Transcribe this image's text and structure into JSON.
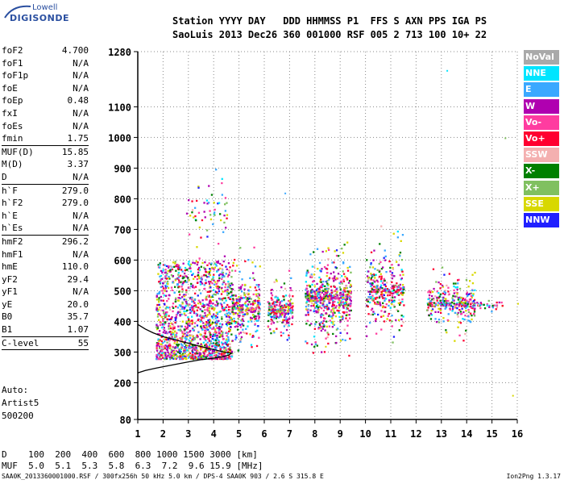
{
  "logo": {
    "line1": "Lowell",
    "line2": "DIGISONDE"
  },
  "header": {
    "line1": "Station YYYY DAY   DDD HHMMSS P1  FFS S AXN PPS IGA PS",
    "line2": "SaoLuis 2013 Dec26 360 001000 RSF 005 2 713 100 10+ 22"
  },
  "params": [
    {
      "k": "foF2",
      "v": "4.700"
    },
    {
      "k": "foF1",
      "v": "N/A"
    },
    {
      "k": "foF1p",
      "v": "N/A"
    },
    {
      "k": "foE",
      "v": "N/A"
    },
    {
      "k": "foEp",
      "v": "0.48"
    },
    {
      "k": "fxI",
      "v": "N/A"
    },
    {
      "k": "foEs",
      "v": "N/A"
    },
    {
      "k": "fmin",
      "v": "1.75"
    },
    {
      "sep": true
    },
    {
      "k": "MUF(D)",
      "v": "15.85"
    },
    {
      "k": "M(D)",
      "v": "3.37"
    },
    {
      "k": "D",
      "v": "N/A"
    },
    {
      "sep": true
    },
    {
      "k": "h`F",
      "v": "279.0"
    },
    {
      "k": "h`F2",
      "v": "279.0"
    },
    {
      "k": "h`E",
      "v": "N/A"
    },
    {
      "k": "h`Es",
      "v": "N/A"
    },
    {
      "sep": true
    },
    {
      "k": "hmF2",
      "v": "296.2"
    },
    {
      "k": "hmF1",
      "v": "N/A"
    },
    {
      "k": "hmE",
      "v": "110.0"
    },
    {
      "k": "yF2",
      "v": "29.4"
    },
    {
      "k": "yF1",
      "v": "N/A"
    },
    {
      "k": "yE",
      "v": "20.0"
    },
    {
      "k": "B0",
      "v": "35.7"
    },
    {
      "k": "B1",
      "v": "1.07"
    },
    {
      "sep": true
    },
    {
      "k": "C-level",
      "v": "55"
    },
    {
      "sep": true
    }
  ],
  "autoinfo": [
    "Auto:",
    "Artist5",
    "500200"
  ],
  "legend": [
    {
      "label": "NoVal",
      "color": "#a9a9a9"
    },
    {
      "label": "NNE",
      "color": "#00e5ff"
    },
    {
      "label": "E",
      "color": "#3aa8ff"
    },
    {
      "label": "W",
      "color": "#b000b0"
    },
    {
      "label": "Vo-",
      "color": "#ff3ca0"
    },
    {
      "label": "Vo+",
      "color": "#ff0030"
    },
    {
      "label": "SSW",
      "color": "#f4b0b0"
    },
    {
      "label": "X-",
      "color": "#008000"
    },
    {
      "label": "X+",
      "color": "#80c060"
    },
    {
      "label": "SSE",
      "color": "#d8d800"
    },
    {
      "label": "NNW",
      "color": "#2020ff"
    }
  ],
  "muf_table": {
    "line1": "D    100  200  400  600  800 1000 1500 3000 [km]",
    "line2": "MUF  5.0  5.1  5.3  5.8  6.3  7.2  9.6 15.9 [MHz]"
  },
  "footer": "SAA0K_2013360001000.RSF / 300fx256h 50 kHz 5.0 km / DPS-4 SAA0K 903 / 2.6 S 315.8 E",
  "footer_right": "Ion2Png 1.3.17",
  "chart_data": {
    "type": "scatter",
    "title": "",
    "xlabel": "",
    "ylabel": "",
    "x_ticks": [
      "1",
      "2",
      "3",
      "4",
      "5",
      "6",
      "7",
      "8",
      "9",
      "10",
      "11",
      "12",
      "13",
      "14",
      "15",
      "16"
    ],
    "y_ticks": [
      "80",
      "200",
      "300",
      "400",
      "500",
      "600",
      "700",
      "800",
      "900",
      "1000",
      "1100",
      "1280"
    ],
    "xlim": [
      1,
      16
    ],
    "ylim": [
      80,
      1280
    ],
    "grid": true,
    "trace_profile": {
      "x": [
        1.0,
        1.3,
        1.7,
        2.0,
        2.5,
        3.0,
        3.5,
        4.0,
        4.3,
        4.6,
        4.7,
        4.4,
        3.9,
        3.3,
        2.6,
        2.0,
        1.6,
        1.3,
        1.0
      ],
      "y": [
        232,
        240,
        247,
        252,
        260,
        268,
        275,
        280,
        284,
        290,
        296,
        300,
        310,
        322,
        337,
        350,
        363,
        375,
        390
      ]
    },
    "echo_clusters": [
      {
        "x": [
          1.7,
          4.7
        ],
        "y": [
          280,
          600
        ]
      },
      {
        "x": [
          2.9,
          4.5
        ],
        "y": [
          600,
          900
        ]
      },
      {
        "x": [
          4.7,
          5.8
        ],
        "y": [
          330,
          560
        ]
      },
      {
        "x": [
          6.1,
          7.1
        ],
        "y": [
          370,
          510
        ]
      },
      {
        "x": [
          7.6,
          9.4
        ],
        "y": [
          360,
          600
        ]
      },
      {
        "x": [
          10.0,
          11.5
        ],
        "y": [
          380,
          620
        ]
      },
      {
        "x": [
          12.4,
          14.3
        ],
        "y": [
          390,
          530
        ]
      },
      {
        "x": [
          14.3,
          15.4
        ],
        "y": [
          440,
          470
        ]
      }
    ],
    "scattered_echoes": [
      {
        "x": 13.2,
        "y": 1220
      },
      {
        "x": 15.5,
        "y": 1000
      },
      {
        "x": 15.8,
        "y": 160
      },
      {
        "x": 6.8,
        "y": 820
      },
      {
        "x": 8.4,
        "y": 320
      },
      {
        "x": 16.0,
        "y": 460
      }
    ]
  }
}
